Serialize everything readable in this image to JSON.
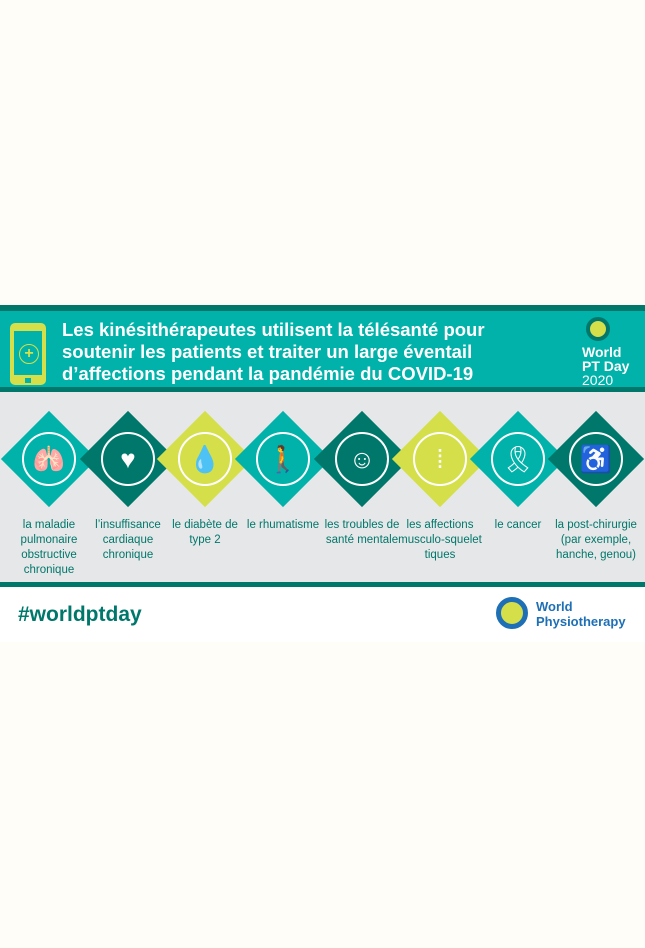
{
  "header": {
    "title": "Les kinésithérapeutes utilisent la télésanté pour soutenir les patients et traiter un large éventail d’affections pendant la pandémie du COVID-19",
    "logo": {
      "line1": "World",
      "line2": "PT Day",
      "year": "2020"
    }
  },
  "colors": {
    "teal": "#00b2a9",
    "dark": "#00776b",
    "lime": "#d4df4a"
  },
  "items": [
    {
      "label": "la maladie pulmonaire obstructive chronique",
      "icon": "lungs-icon",
      "glyph": "🫁",
      "color": "#00b2a9"
    },
    {
      "label": "l’insuffisance cardiaque chronique",
      "icon": "heart-icon",
      "glyph": "♥",
      "color": "#00776b"
    },
    {
      "label": "le diabète de type 2",
      "icon": "drop-icon",
      "glyph": "💧",
      "color": "#d4df4a"
    },
    {
      "label": "le rhumatisme",
      "icon": "person-icon",
      "glyph": "🚶",
      "color": "#00b2a9"
    },
    {
      "label": "les troubles de santé mentale",
      "icon": "head-icon",
      "glyph": "☺",
      "color": "#00776b"
    },
    {
      "label": "les affections musculo-squelet tiques",
      "icon": "spine-icon",
      "glyph": "⁞",
      "color": "#d4df4a"
    },
    {
      "label": "le cancer",
      "icon": "ribbon-icon",
      "glyph": "🎗",
      "color": "#00b2a9"
    },
    {
      "label": "la post-chirurgie (par exemple, hanche, genou)",
      "icon": "seated-person-icon",
      "glyph": "♿",
      "color": "#00776b"
    }
  ],
  "footer": {
    "hashtag": "#worldptday",
    "brand1": "World",
    "brand2": "Physiotherapy"
  }
}
